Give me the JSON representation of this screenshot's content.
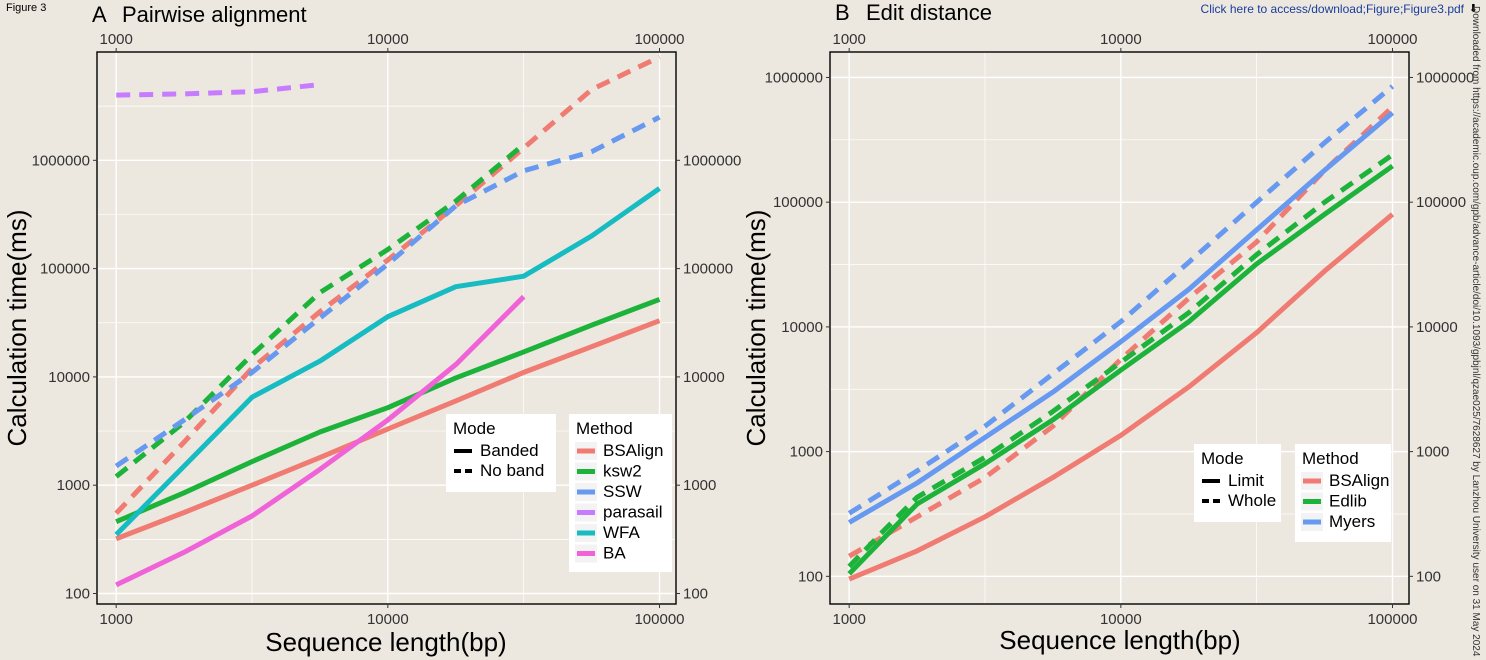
{
  "figure_label": "Figure 3",
  "download_link": "Click here to access/download;Figure;Figure3.pdf",
  "download_icon": "download-icon",
  "side_note": "Downloaded from https://academic.oup.com/gpb/advance-article/doi/10.1093/gpbjnl/qzae025/7628627 by Lanzhou University user on 31 May 2024",
  "chart_data": [
    {
      "type": "line",
      "panel": "A",
      "title": "Pairwise alignment",
      "xlabel": "Sequence length(bp)",
      "ylabel": "Calculation time(ms)",
      "xscale": "log",
      "yscale": "log",
      "xlim": [
        850,
        115000
      ],
      "ylim": [
        80,
        10000000
      ],
      "x_ticks": [
        1000,
        10000,
        100000
      ],
      "x_tick_labels": [
        "1000",
        "10000",
        "100000"
      ],
      "y_ticks": [
        100,
        1000,
        10000,
        100000,
        1000000
      ],
      "y_tick_labels": [
        "100",
        "1000",
        "10000",
        "100000",
        "1000000"
      ],
      "secondary_axes": true,
      "grid": true,
      "legends": [
        {
          "title": "Mode",
          "entries": [
            "Banded",
            "No band"
          ],
          "placement": "bottom-right"
        },
        {
          "title": "Method",
          "entries": [
            "BSAlign",
            "ksw2",
            "SSW",
            "parasail",
            "WFA",
            "BA"
          ],
          "placement": "bottom-right"
        }
      ],
      "series": [
        {
          "name": "BSAlign",
          "mode": "Banded",
          "color": "#f07b72",
          "x": [
            1000,
            1778,
            3162,
            5623,
            10000,
            17783,
            31623,
            56234,
            100000
          ],
          "y": [
            320,
            560,
            1000,
            1800,
            3300,
            6000,
            11000,
            19000,
            33000
          ]
        },
        {
          "name": "BSAlign",
          "mode": "No band",
          "color": "#f07b72",
          "x": [
            1000,
            1778,
            3162,
            5623,
            10000,
            17783,
            31623,
            56234,
            100000
          ],
          "y": [
            550,
            2500,
            12000,
            40000,
            120000,
            380000,
            1300000,
            4500000,
            9000000
          ]
        },
        {
          "name": "ksw2",
          "mode": "Banded",
          "color": "#1db33b",
          "x": [
            1000,
            1778,
            3162,
            5623,
            10000,
            17783,
            31623,
            56234,
            100000
          ],
          "y": [
            460,
            850,
            1650,
            3100,
            5200,
            9800,
            17000,
            30000,
            52000
          ]
        },
        {
          "name": "ksw2",
          "mode": "No band",
          "color": "#1db33b",
          "x": [
            1000,
            1778,
            3162,
            5623,
            10000,
            17783,
            31623
          ],
          "y": [
            1200,
            3800,
            16000,
            60000,
            150000,
            420000,
            1400000
          ]
        },
        {
          "name": "SSW",
          "mode": "No band",
          "color": "#6799f0",
          "x": [
            1000,
            1778,
            3162,
            5623,
            10000,
            17783,
            31623,
            56234,
            100000
          ],
          "y": [
            1500,
            4000,
            11000,
            35000,
            110000,
            380000,
            800000,
            1200000,
            2500000
          ]
        },
        {
          "name": "parasail",
          "mode": "No band",
          "color": "#c77cff",
          "x": [
            1000,
            1778,
            3162,
            5623
          ],
          "y": [
            4000000,
            4100000,
            4300000,
            5000000
          ]
        },
        {
          "name": "WFA",
          "mode": "Banded",
          "color": "#17bbc2",
          "x": [
            1000,
            1778,
            3162,
            5623,
            10000,
            17783,
            31623,
            56234,
            100000
          ],
          "y": [
            350,
            1500,
            6500,
            14000,
            36000,
            68000,
            85000,
            200000,
            550000
          ]
        },
        {
          "name": "BA",
          "mode": "Banded",
          "color": "#f062d8",
          "x": [
            1000,
            1778,
            3162,
            5623,
            10000,
            17783,
            31623
          ],
          "y": [
            120,
            240,
            520,
            1400,
            4000,
            13000,
            55000
          ]
        }
      ]
    },
    {
      "type": "line",
      "panel": "B",
      "title": "Edit distance",
      "xlabel": "Sequence length(bp)",
      "ylabel": "Calculation time(ms)",
      "xscale": "log",
      "yscale": "log",
      "xlim": [
        850,
        115000
      ],
      "ylim": [
        60,
        1600000
      ],
      "x_ticks": [
        1000,
        10000,
        100000
      ],
      "x_tick_labels": [
        "1000",
        "10000",
        "100000"
      ],
      "y_ticks": [
        100,
        1000,
        10000,
        100000,
        1000000
      ],
      "y_tick_labels": [
        "100",
        "1000",
        "10000",
        "100000",
        "1000000"
      ],
      "secondary_axes": true,
      "grid": true,
      "legends": [
        {
          "title": "Mode",
          "entries": [
            "Limit",
            "Whole"
          ],
          "placement": "bottom-right"
        },
        {
          "title": "Method",
          "entries": [
            "BSAlign",
            "Edlib",
            "Myers"
          ],
          "placement": "bottom-right"
        }
      ],
      "series": [
        {
          "name": "BSAlign",
          "mode": "Limit",
          "color": "#f07b72",
          "x": [
            1000,
            1778,
            3162,
            5623,
            10000,
            17783,
            31623,
            56234,
            100000
          ],
          "y": [
            95,
            160,
            300,
            620,
            1350,
            3300,
            9000,
            28000,
            80000
          ]
        },
        {
          "name": "BSAlign",
          "mode": "Whole",
          "color": "#f07b72",
          "x": [
            1000,
            1778,
            3162,
            5623,
            10000,
            17783,
            31623,
            56234,
            100000
          ],
          "y": [
            145,
            300,
            620,
            1600,
            5500,
            17000,
            48000,
            180000,
            580000
          ]
        },
        {
          "name": "Edlib",
          "mode": "Limit",
          "color": "#1db33b",
          "x": [
            1000,
            1334,
            1778,
            3162,
            5623,
            10000,
            17783,
            31623,
            56234,
            100000
          ],
          "y": [
            105,
            200,
            380,
            800,
            1800,
            4500,
            11000,
            32000,
            80000,
            195000
          ]
        },
        {
          "name": "Edlib",
          "mode": "Whole",
          "color": "#1db33b",
          "x": [
            1000,
            1334,
            1778,
            3162,
            5623,
            10000,
            17783,
            31623,
            56234,
            100000
          ],
          "y": [
            120,
            230,
            430,
            900,
            2100,
            5200,
            13000,
            38000,
            100000,
            240000
          ]
        },
        {
          "name": "Myers",
          "mode": "Limit",
          "color": "#6799f0",
          "x": [
            1000,
            1778,
            3162,
            5623,
            10000,
            17783,
            31623,
            56234,
            100000
          ],
          "y": [
            270,
            560,
            1300,
            3000,
            7600,
            20000,
            60000,
            180000,
            520000
          ]
        },
        {
          "name": "Myers",
          "mode": "Whole",
          "color": "#6799f0",
          "x": [
            1000,
            1778,
            3162,
            5623,
            10000,
            17783,
            31623,
            56234,
            100000
          ],
          "y": [
            320,
            700,
            1600,
            4200,
            11000,
            33000,
            100000,
            300000,
            850000
          ]
        }
      ]
    }
  ]
}
